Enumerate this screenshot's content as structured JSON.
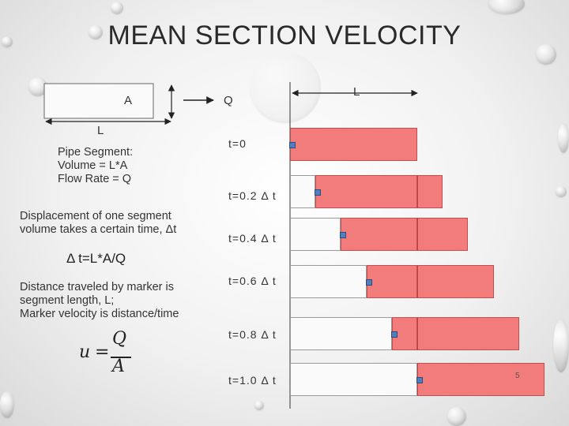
{
  "title": "MEAN SECTION VELOCITY",
  "pipe": {
    "area_label": "A",
    "length_label": "L",
    "flow_label": "Q",
    "description": "Pipe Segment:\nVolume = L*A\nFlow Rate = Q"
  },
  "displacement_text": "Displacement of one segment\nvolume takes a certain time, Δt",
  "delta_t_formula": "Δ t=L*A/Q",
  "distance_text": "Distance traveled by marker is\nsegment length, L;\nMarker velocity is distance/time",
  "formula": {
    "lhs": "u",
    "eq": "=",
    "numerator": "Q",
    "denominator": "A"
  },
  "diagram": {
    "length_label": "L",
    "marker_progress": [
      0,
      0.2,
      0.4,
      0.6,
      0.8,
      1.0
    ],
    "rows": [
      {
        "time_label": "t=0"
      },
      {
        "time_label": "t=0.2 Δ t"
      },
      {
        "time_label": "t=0.4 Δ t"
      },
      {
        "time_label": "t=0.6 Δ t"
      },
      {
        "time_label": "t=0.8 Δ t"
      },
      {
        "time_label": "t=1.0 Δ t"
      }
    ]
  },
  "slide_number": "5",
  "colors": {
    "fluid": "#f27b7b",
    "marker": "#4f7fc0"
  }
}
